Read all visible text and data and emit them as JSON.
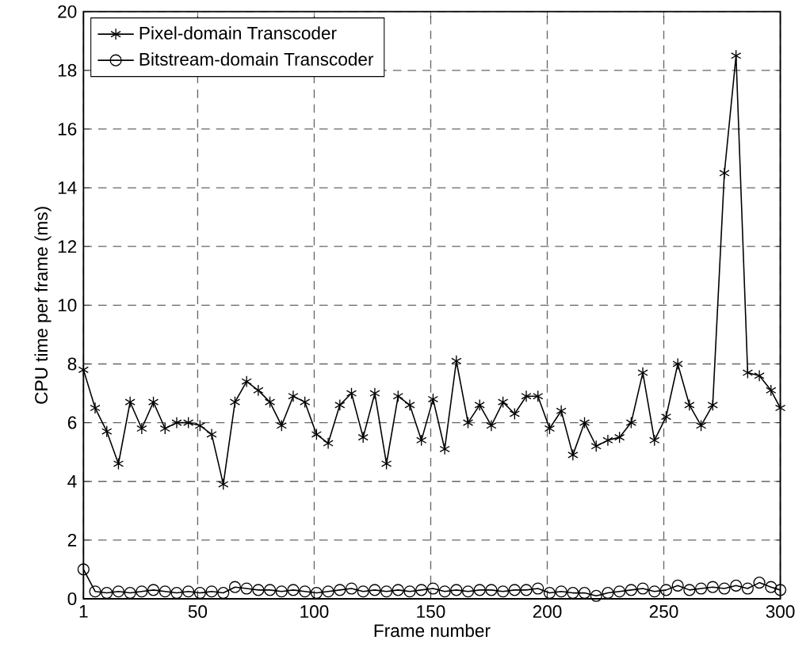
{
  "chart_data": {
    "type": "line",
    "xlabel": "Frame number",
    "ylabel": "CPU time per frame (ms)",
    "x": [
      1,
      6,
      11,
      16,
      21,
      26,
      31,
      36,
      41,
      46,
      51,
      56,
      61,
      66,
      71,
      76,
      81,
      86,
      91,
      96,
      101,
      106,
      111,
      116,
      121,
      126,
      131,
      136,
      141,
      146,
      151,
      156,
      161,
      166,
      171,
      176,
      181,
      186,
      191,
      196,
      201,
      206,
      211,
      216,
      221,
      226,
      231,
      236,
      241,
      246,
      251,
      256,
      261,
      266,
      271,
      276,
      281,
      286,
      291,
      296,
      300
    ],
    "series": [
      {
        "name": "Pixel-domain Transcoder",
        "color": "#000000",
        "marker": "cross",
        "values": [
          7.8,
          6.5,
          5.7,
          4.6,
          6.7,
          5.8,
          6.7,
          5.8,
          6.0,
          6.0,
          5.9,
          5.6,
          3.9,
          6.7,
          7.4,
          7.1,
          6.7,
          5.9,
          6.9,
          6.7,
          5.6,
          5.3,
          6.6,
          7.0,
          5.5,
          7.0,
          4.6,
          6.9,
          6.6,
          5.4,
          6.8,
          5.1,
          8.1,
          6.0,
          6.6,
          5.9,
          6.7,
          6.3,
          6.9,
          6.9,
          5.8,
          6.4,
          4.9,
          6.0,
          5.2,
          5.4,
          5.5,
          6.0,
          7.7,
          5.4,
          6.2,
          8.0,
          6.6,
          5.9,
          6.6,
          14.5,
          18.5,
          7.7,
          7.6,
          7.1,
          6.5
        ]
      },
      {
        "name": "Bitstream-domain Transcoder",
        "color": "#000000",
        "marker": "circle",
        "values": [
          1.0,
          0.25,
          0.2,
          0.25,
          0.2,
          0.25,
          0.3,
          0.25,
          0.2,
          0.25,
          0.2,
          0.25,
          0.2,
          0.4,
          0.35,
          0.3,
          0.3,
          0.25,
          0.3,
          0.25,
          0.2,
          0.25,
          0.3,
          0.35,
          0.25,
          0.3,
          0.25,
          0.3,
          0.25,
          0.3,
          0.35,
          0.25,
          0.3,
          0.25,
          0.3,
          0.3,
          0.25,
          0.3,
          0.3,
          0.35,
          0.2,
          0.25,
          0.2,
          0.2,
          0.1,
          0.2,
          0.25,
          0.3,
          0.35,
          0.25,
          0.3,
          0.45,
          0.3,
          0.35,
          0.4,
          0.35,
          0.45,
          0.35,
          0.55,
          0.4,
          0.3
        ]
      }
    ],
    "xlim": [
      1,
      300
    ],
    "ylim": [
      0,
      20
    ],
    "xticks": [
      1,
      50,
      100,
      150,
      200,
      250,
      300
    ],
    "yticks": [
      0,
      2,
      4,
      6,
      8,
      10,
      12,
      14,
      16,
      18,
      20
    ],
    "grid": true,
    "legend": "top left",
    "line_style": "solid"
  }
}
